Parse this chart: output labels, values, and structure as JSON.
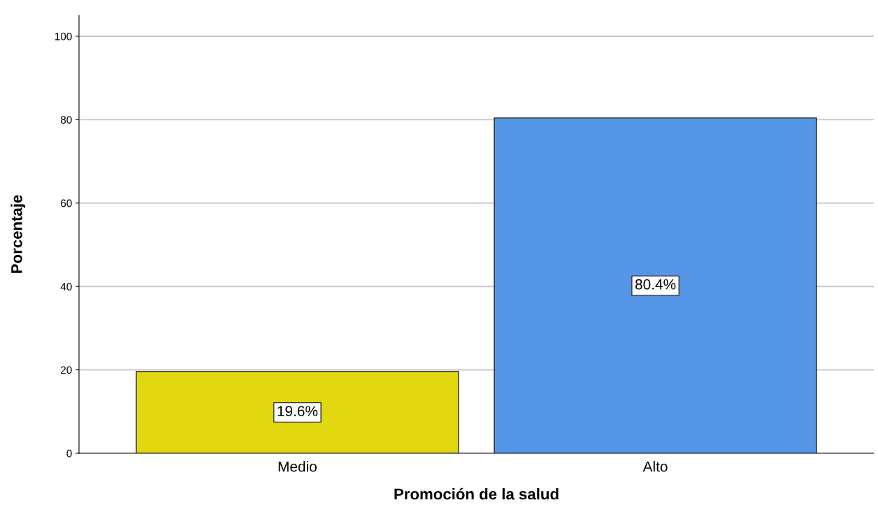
{
  "chart_data": {
    "type": "bar",
    "xlabel": "Promoción de la salud",
    "ylabel": "Porcentaje",
    "categories": [
      "Medio",
      "Alto"
    ],
    "values": [
      19.6,
      80.4
    ],
    "colors": [
      "#e1d80f",
      "#5596e6"
    ],
    "value_labels": [
      "19.6%",
      "80.4%"
    ],
    "ylim": [
      0,
      105
    ],
    "yticks": [
      0,
      20,
      40,
      60,
      80,
      100
    ],
    "grid": "y"
  }
}
